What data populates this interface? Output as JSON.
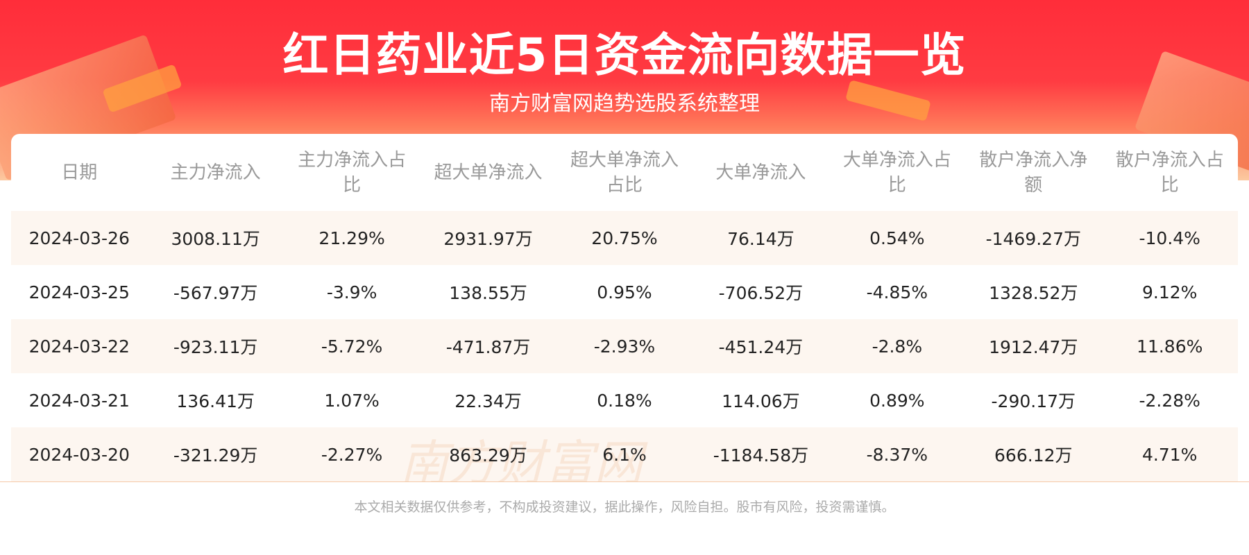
{
  "header": {
    "title": "红日药业近5日资金流向数据一览",
    "subtitle": "南方财富网趋势选股系统整理"
  },
  "table": {
    "columns": [
      "日期",
      "主力净流入",
      "主力净流入占比",
      "超大单净流入",
      "超大单净流入占比",
      "大单净流入",
      "大单净流入占比",
      "散户净流入净额",
      "散户净流入占比"
    ],
    "rows": [
      [
        "2024-03-26",
        "3008.11万",
        "21.29%",
        "2931.97万",
        "20.75%",
        "76.14万",
        "0.54%",
        "-1469.27万",
        "-10.4%"
      ],
      [
        "2024-03-25",
        "-567.97万",
        "-3.9%",
        "138.55万",
        "0.95%",
        "-706.52万",
        "-4.85%",
        "1328.52万",
        "9.12%"
      ],
      [
        "2024-03-22",
        "-923.11万",
        "-5.72%",
        "-471.87万",
        "-2.93%",
        "-451.24万",
        "-2.8%",
        "1912.47万",
        "11.86%"
      ],
      [
        "2024-03-21",
        "136.41万",
        "1.07%",
        "22.34万",
        "0.18%",
        "114.06万",
        "0.89%",
        "-290.17万",
        "-2.28%"
      ],
      [
        "2024-03-20",
        "-321.29万",
        "-2.27%",
        "863.29万",
        "6.1%",
        "-1184.58万",
        "-8.37%",
        "666.12万",
        "4.71%"
      ]
    ]
  },
  "watermark": "南方财富网 southmoney.com",
  "footer": "本文相关数据仅供参考，不构成投资建议，据此操作，风险自担。股市有风险，投资需谨慎。"
}
